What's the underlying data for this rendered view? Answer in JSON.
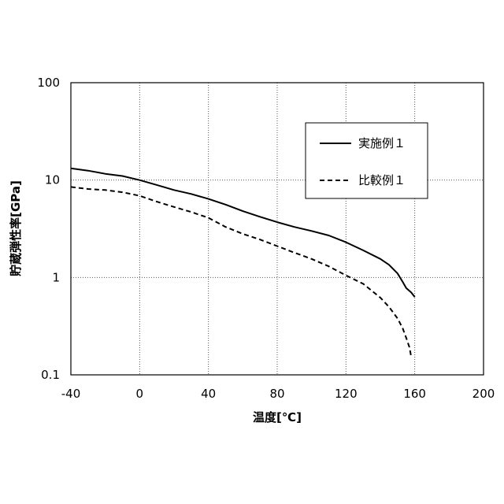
{
  "chart_data": {
    "type": "line",
    "xlabel": "温度[℃]",
    "ylabel": "貯蔵弾性率[GPa]",
    "xlim": [
      -40,
      200
    ],
    "ylim": [
      0.1,
      100
    ],
    "yscale": "log",
    "x_ticks": [
      -40,
      0,
      40,
      80,
      120,
      160,
      200
    ],
    "x_tick_labels": [
      "-40",
      "0",
      "40",
      "80",
      "120",
      "160",
      "200"
    ],
    "y_ticks": [
      0.1,
      1,
      10,
      100
    ],
    "y_tick_labels": [
      "0.1",
      "1",
      "10",
      "100"
    ],
    "grid": "dotted",
    "legend_position": "top-right",
    "series": [
      {
        "name": "実施例１",
        "line_style": "solid",
        "color": "#000000",
        "x": [
          -40,
          -30,
          -20,
          -10,
          0,
          10,
          20,
          30,
          40,
          50,
          60,
          70,
          80,
          90,
          100,
          110,
          120,
          130,
          140,
          145,
          150,
          153,
          155,
          158,
          160
        ],
        "y": [
          13.2,
          12.5,
          11.6,
          11.0,
          10.0,
          8.9,
          7.9,
          7.2,
          6.4,
          5.6,
          4.8,
          4.2,
          3.7,
          3.3,
          3.0,
          2.7,
          2.3,
          1.9,
          1.55,
          1.35,
          1.1,
          0.9,
          0.78,
          0.7,
          0.63
        ]
      },
      {
        "name": "比較例１",
        "line_style": "dashed",
        "color": "#000000",
        "x": [
          -40,
          -30,
          -20,
          -10,
          0,
          10,
          20,
          30,
          40,
          50,
          60,
          70,
          80,
          90,
          100,
          110,
          120,
          130,
          140,
          145,
          150,
          153,
          155,
          157,
          158
        ],
        "y": [
          8.5,
          8.1,
          7.9,
          7.5,
          6.9,
          6.0,
          5.3,
          4.7,
          4.1,
          3.3,
          2.8,
          2.45,
          2.1,
          1.8,
          1.55,
          1.3,
          1.05,
          0.86,
          0.62,
          0.5,
          0.38,
          0.3,
          0.24,
          0.19,
          0.15
        ]
      }
    ]
  }
}
